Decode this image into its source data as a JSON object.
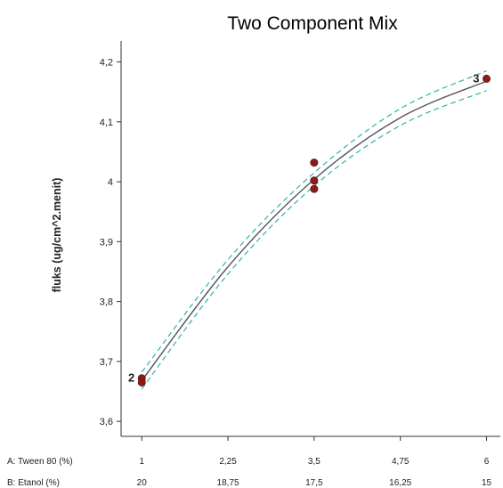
{
  "chart_data": {
    "type": "line",
    "title": "Two Component Mix",
    "ylabel": "fluks (ug/cm^2.menit)",
    "ylim": [
      3.575,
      4.235
    ],
    "y_ticks": [
      "3,6",
      "3,7",
      "3,8",
      "3,9",
      "4",
      "4,1",
      "4,2"
    ],
    "x_axes": [
      {
        "label": "A: Tween 80 (%)",
        "ticks": [
          "1",
          "2,25",
          "3,5",
          "4,75",
          "6"
        ]
      },
      {
        "label": "B: Etanol (%)",
        "ticks": [
          "20",
          "18,75",
          "17,5",
          "16,25",
          "15"
        ]
      }
    ],
    "x_values": [
      1,
      2.25,
      3.5,
      4.75,
      6
    ],
    "xlim": [
      0.7,
      6.2
    ],
    "series": [
      {
        "kind": "fit",
        "color": "#555555",
        "x": [
          1,
          2.25,
          3.5,
          4.75,
          6
        ],
        "y": [
          3.668,
          3.858,
          4.004,
          4.107,
          4.168
        ]
      },
      {
        "kind": "ci-upper",
        "color": "#3fb6b0",
        "x": [
          1,
          2.25,
          3.5,
          4.75,
          6
        ],
        "y": [
          3.682,
          3.87,
          4.015,
          4.122,
          4.185
        ]
      },
      {
        "kind": "ci-lower",
        "color": "#3fb6b0",
        "x": [
          1,
          2.25,
          3.5,
          4.75,
          6
        ],
        "y": [
          3.654,
          3.846,
          3.993,
          4.094,
          4.152
        ]
      }
    ],
    "points": [
      {
        "x": 1,
        "y": 3.672
      },
      {
        "x": 1,
        "y": 3.665
      },
      {
        "x": 3.5,
        "y": 4.032
      },
      {
        "x": 3.5,
        "y": 4.002
      },
      {
        "x": 3.5,
        "y": 3.988
      },
      {
        "x": 6,
        "y": 4.172
      }
    ],
    "point_color": "#8b1a1a",
    "point_labels": [
      {
        "text": "2",
        "x": 1,
        "y": 3.672
      },
      {
        "text": "3",
        "x": 6,
        "y": 4.172
      }
    ]
  }
}
